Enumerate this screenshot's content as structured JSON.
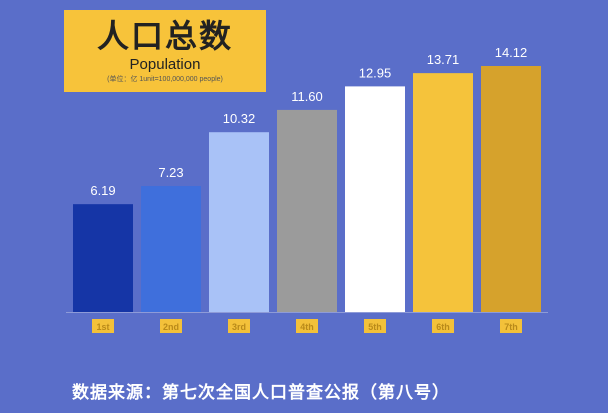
{
  "title": {
    "main": "人口总数",
    "sub": "Population",
    "unit": "(单位：亿 1unit=100,000,000 people)"
  },
  "chart_data": {
    "type": "bar",
    "categories": [
      "1st",
      "2nd",
      "3rd",
      "4th",
      "5th",
      "6th",
      "7th"
    ],
    "values": [
      6.19,
      7.23,
      10.32,
      11.6,
      12.95,
      13.71,
      14.12
    ],
    "value_labels": [
      "6.19",
      "7.23",
      "10.32",
      "11.60",
      "12.95",
      "13.71",
      "14.12"
    ],
    "bar_colors": [
      "#1535a6",
      "#3f6fdc",
      "#a9c2f7",
      "#9b9b9b",
      "#ffffff",
      "#f5c33b",
      "#d6a22c"
    ],
    "ylim": [
      0,
      14.12
    ],
    "grid": false,
    "legend": "none"
  },
  "footer": {
    "source": "数据来源：第七次全国人口普查公报（第八号）"
  },
  "colors": {
    "background": "#5a6ec9",
    "title_box": "#f7c33a",
    "tick_label_bg": "#f3c13a",
    "tick_label_text": "#b98a1a",
    "value_label_text": "#ffffff",
    "axis_line": "#8e9bd8"
  }
}
